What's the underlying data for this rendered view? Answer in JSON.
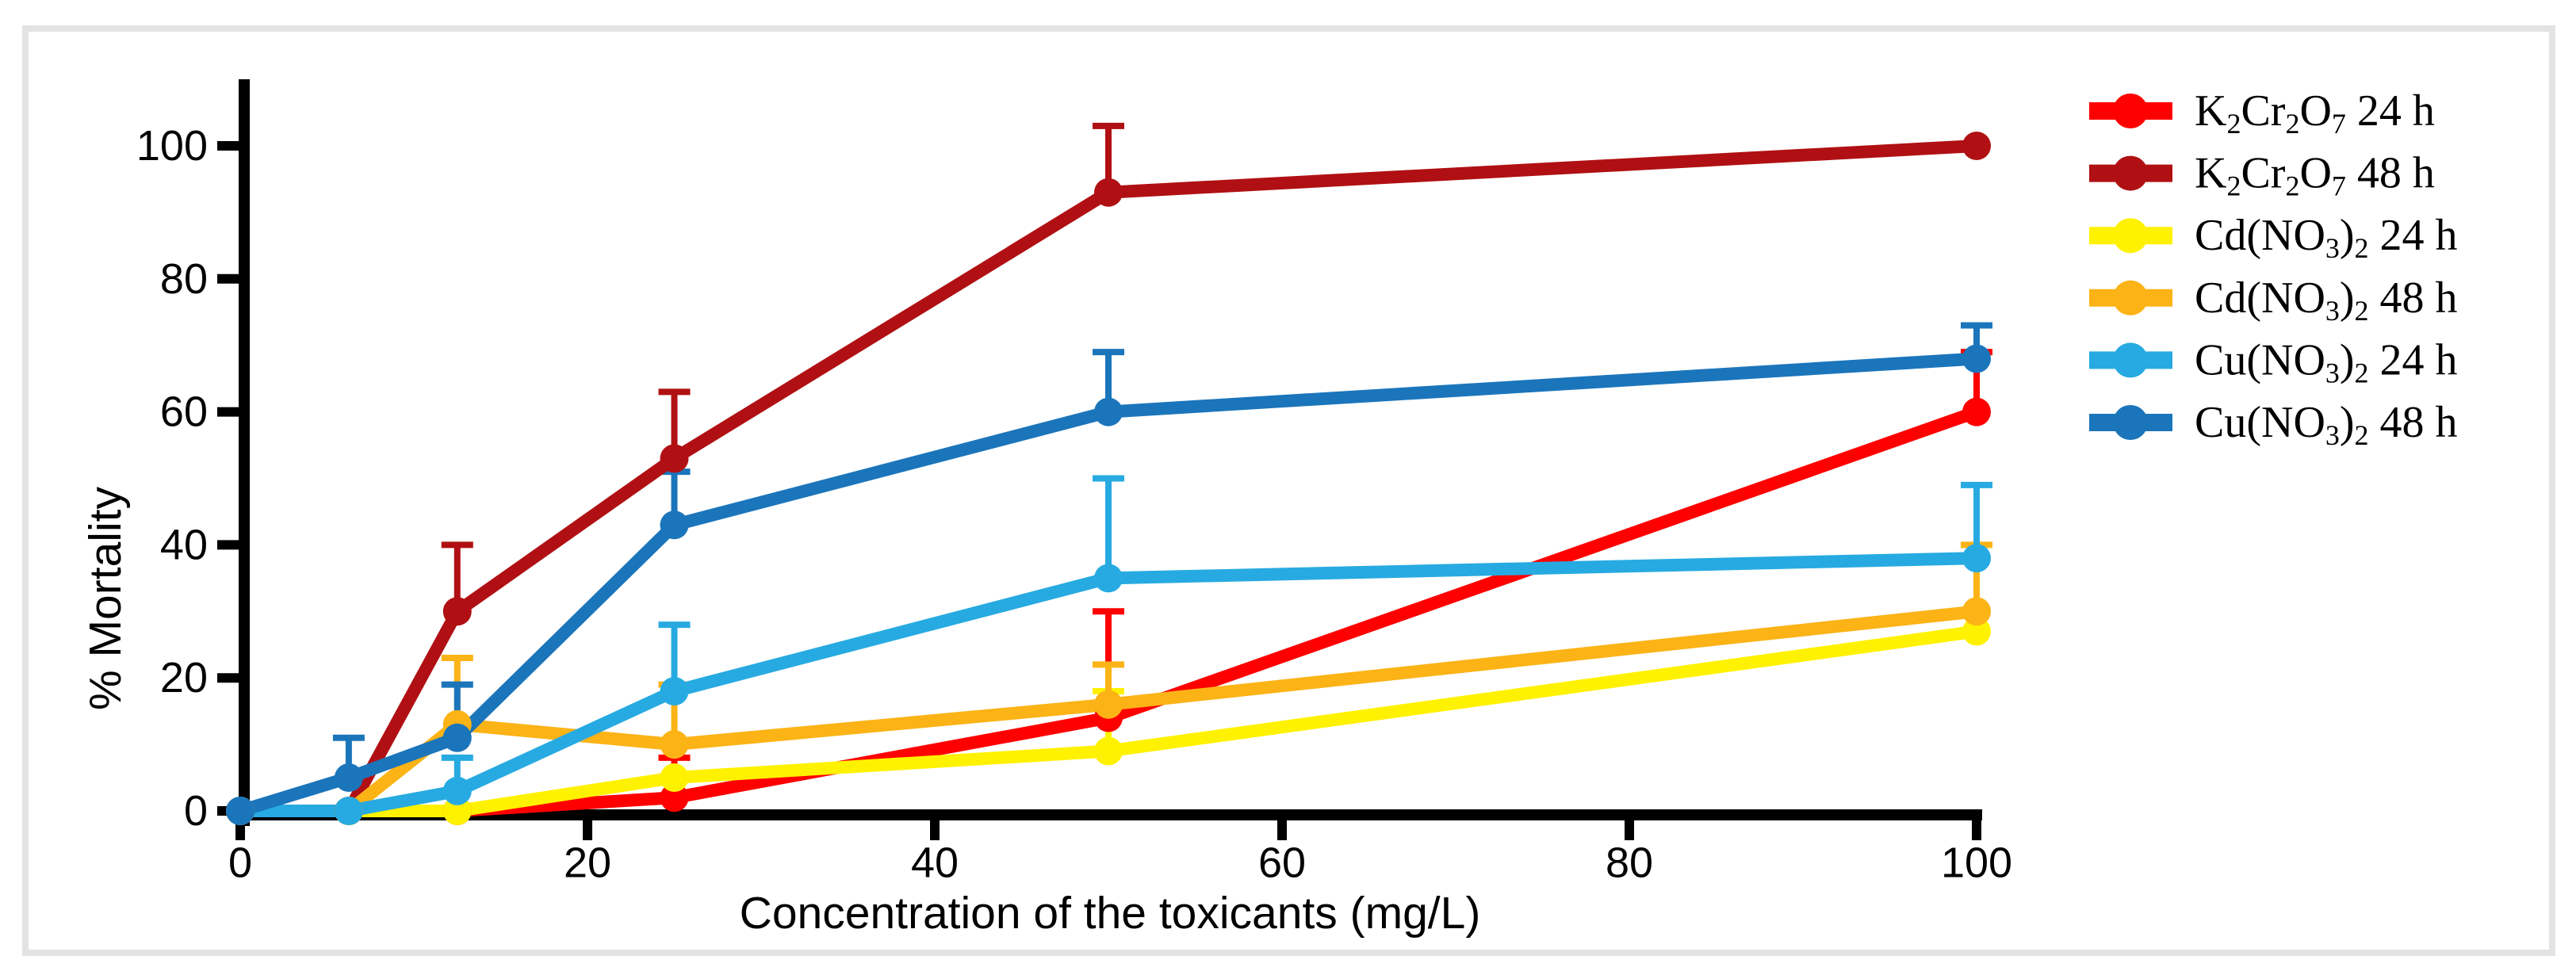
{
  "figure": {
    "background": "#FFFFFF",
    "frame_border_color": "#E3E3E3"
  },
  "chart_data": {
    "type": "line",
    "title": "",
    "xlabel": "Concentration of the toxicants (mg/L)",
    "ylabel": "% Mortality",
    "x": [
      0,
      6.25,
      12.5,
      25,
      50,
      100
    ],
    "x_ticks": [
      0,
      20,
      40,
      60,
      80,
      100
    ],
    "y_ticks": [
      0,
      20,
      40,
      60,
      80,
      100
    ],
    "xlim": [
      0,
      100
    ],
    "ylim": [
      0,
      110
    ],
    "grid": "off",
    "legend_position": "right",
    "error_bars": "up-only",
    "series": [
      {
        "name": "K_2Cr_2O_7 24 h",
        "color": "#FE0000",
        "values": [
          0,
          0,
          0,
          2,
          14,
          60
        ],
        "err_up": [
          0,
          0,
          0,
          6,
          16,
          9
        ]
      },
      {
        "name": "K_2Cr_2O_7 48 h",
        "color": "#B01013",
        "values": [
          0,
          0,
          30,
          53,
          93,
          100
        ],
        "err_up": [
          0,
          0,
          10,
          10,
          10,
          0
        ]
      },
      {
        "name": "Cd(NO_3)_2 24 h",
        "color": "#FFF200",
        "values": [
          0,
          0,
          0,
          5,
          9,
          27
        ],
        "err_up": [
          0,
          0,
          0,
          0,
          9,
          0
        ]
      },
      {
        "name": "Cd(NO_3)_2 48 h",
        "color": "#FCB316",
        "values": [
          0,
          0,
          13,
          10,
          16,
          30
        ],
        "err_up": [
          0,
          0,
          10,
          9,
          6,
          10
        ]
      },
      {
        "name": "Cu(NO_3)_2 24 h",
        "color": "#27AAE1",
        "values": [
          0,
          0,
          3,
          18,
          35,
          38
        ],
        "err_up": [
          0,
          0,
          5,
          10,
          15,
          11
        ]
      },
      {
        "name": "Cu(NO_3)_2 48 h",
        "color": "#1B75BB",
        "values": [
          0,
          5,
          11,
          43,
          60,
          68
        ],
        "err_up": [
          0,
          6,
          8,
          8,
          9,
          5
        ]
      }
    ]
  }
}
